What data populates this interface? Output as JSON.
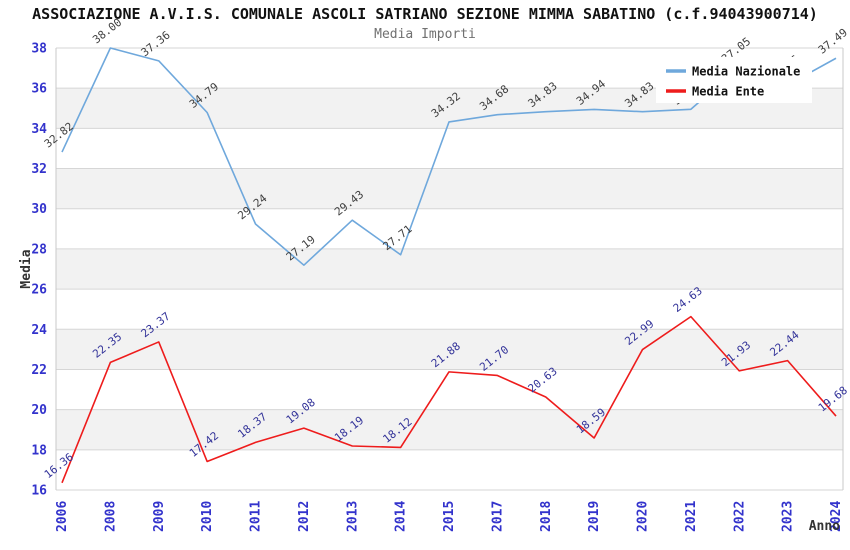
{
  "header": {
    "title": "ASSOCIAZIONE A.V.I.S. COMUNALE ASCOLI SATRIANO SEZIONE MIMMA SABATINO (c.f.94043900714)",
    "subtitle": "Media Importi"
  },
  "axes": {
    "y_title": "Media",
    "x_title": "Anno",
    "y_ticks": [
      16,
      18,
      20,
      22,
      24,
      26,
      28,
      30,
      32,
      34,
      36,
      38
    ]
  },
  "legend": {
    "items": [
      {
        "label": "Media Nazionale",
        "color": "#6FA8DC"
      },
      {
        "label": "Media Ente",
        "color": "#EE1C1C"
      }
    ]
  },
  "chart_data": {
    "type": "line",
    "title": "ASSOCIAZIONE A.V.I.S. COMUNALE ASCOLI SATRIANO SEZIONE MIMMA SABATINO (c.f.94043900714)",
    "subtitle": "Media Importi",
    "xlabel": "Anno",
    "ylabel": "Media",
    "categories": [
      "2006",
      "2008",
      "2009",
      "2010",
      "2011",
      "2012",
      "2013",
      "2014",
      "2015",
      "2017",
      "2018",
      "2019",
      "2020",
      "2021",
      "2022",
      "2023",
      "2024"
    ],
    "ylim": [
      16,
      38
    ],
    "y_tick_step": 2,
    "grid": "horizontal gridlines every 2 units with alternating white/light-gray bands",
    "legend_position": "top-right overlay inside plot",
    "series": [
      {
        "name": "Media Nazionale",
        "color": "#6FA8DC",
        "label_color": "#3F3F3F",
        "values": [
          32.82,
          38.0,
          37.36,
          34.79,
          29.24,
          27.19,
          29.43,
          27.71,
          34.32,
          34.68,
          34.83,
          34.94,
          34.83,
          34.95,
          37.05,
          36.16,
          37.49
        ]
      },
      {
        "name": "Media Ente",
        "color": "#EE1C1C",
        "label_color": "#333399",
        "values": [
          16.36,
          22.35,
          23.37,
          17.42,
          18.37,
          19.08,
          18.19,
          18.12,
          21.88,
          21.7,
          20.63,
          18.59,
          22.99,
          24.63,
          21.93,
          22.44,
          19.68
        ]
      }
    ]
  },
  "style": {
    "tick_label_color": "#3333CC",
    "band_gray": "#F2F2F2",
    "grid_color": "#D6D6D6",
    "border_color": "#C9C9C9",
    "axis_title_color": "#333333",
    "legend_bg": "#FFFFFF",
    "legend_text_color": "#111111"
  }
}
